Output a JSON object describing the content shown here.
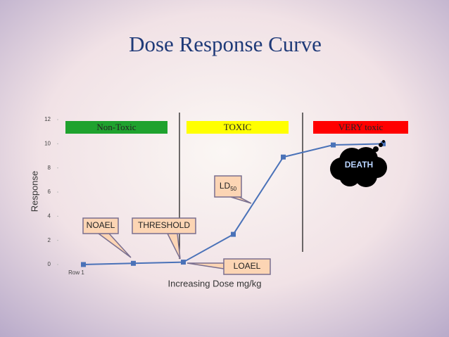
{
  "chart_data": {
    "type": "line",
    "title": "Dose Response Curve",
    "xlabel": "Increasing Dose mg/kg",
    "ylabel": "Response",
    "categories": [
      "Row 1",
      null,
      null,
      null,
      null,
      null,
      null
    ],
    "values": [
      0,
      0.1,
      0.2,
      2.5,
      8.9,
      9.9,
      10
    ],
    "color": "#4a72b8",
    "ylim": [
      0,
      12
    ],
    "yticks": [
      0,
      2,
      4,
      6,
      8,
      10,
      12
    ],
    "regions": [
      {
        "label": "Non-Toxic",
        "color": "#1fa22e"
      },
      {
        "label": "TOXIC",
        "color": "#ffff00"
      },
      {
        "label": "VERY toxic",
        "color": "#ff0000"
      }
    ],
    "callouts": [
      {
        "text": "NOAEL"
      },
      {
        "text": "THRESHOLD"
      },
      {
        "text": "LD",
        "sub": "50"
      },
      {
        "text": "LOAEL"
      }
    ],
    "death": "DEATH"
  }
}
